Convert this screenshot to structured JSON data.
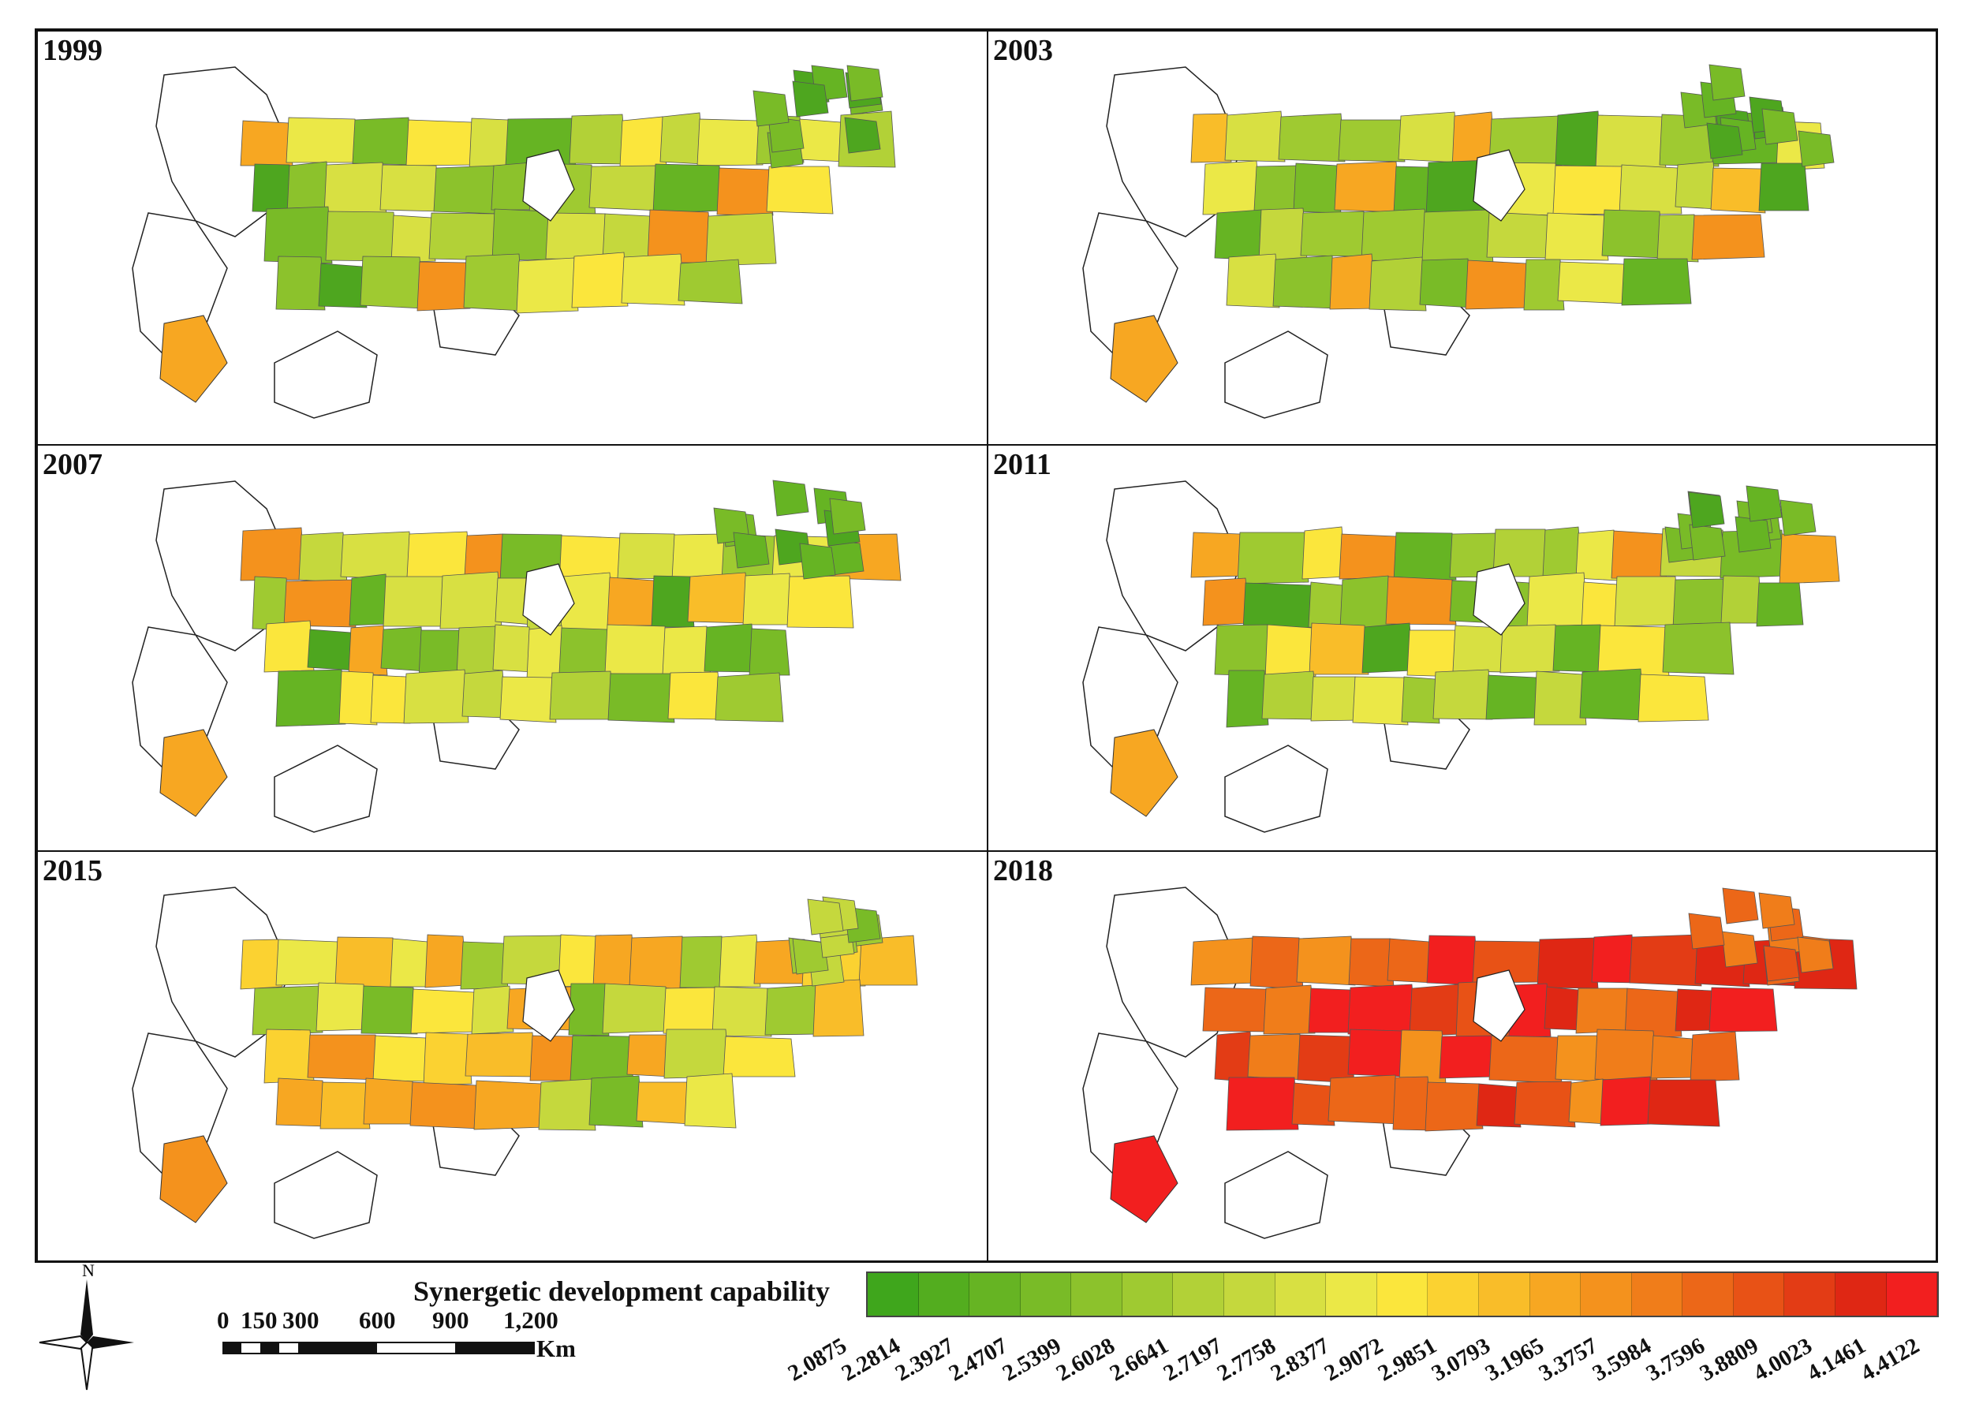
{
  "panels": [
    {
      "year": "1999",
      "theme": "mixed_green"
    },
    {
      "year": "2003",
      "theme": "mixed_green"
    },
    {
      "year": "2007",
      "theme": "mixed_green"
    },
    {
      "year": "2011",
      "theme": "mixed_green"
    },
    {
      "year": "2015",
      "theme": "yellow_orange"
    },
    {
      "year": "2018",
      "theme": "red"
    }
  ],
  "legend": {
    "title": "Synergetic development capability",
    "breaks": [
      "2.0875",
      "2.2814",
      "2.3927",
      "2.4707",
      "2.5399",
      "2.6028",
      "2.6641",
      "2.7197",
      "2.7758",
      "2.8377",
      "2.9072",
      "2.9851",
      "3.0793",
      "3.1965",
      "3.3757",
      "3.5984",
      "3.7596",
      "3.8809",
      "4.0023",
      "4.1461",
      "4.4122"
    ],
    "colors": [
      "#3fa61c",
      "#53ad1f",
      "#66b423",
      "#79bb27",
      "#8cc22c",
      "#9fca31",
      "#b2d137",
      "#c5d83d",
      "#d8e042",
      "#ebe847",
      "#fbe63c",
      "#fbd231",
      "#f9bd29",
      "#f7a722",
      "#f4921d",
      "#f07d1a",
      "#ec6718",
      "#e85216",
      "#e33c15",
      "#df2714",
      "#f21f1f"
    ]
  },
  "scale_bar": {
    "labels": [
      "0",
      "150",
      "300",
      "600",
      "900",
      "1,200"
    ],
    "unit": "Km"
  },
  "north_arrow": {
    "label": "N",
    "icon": "north-arrow-icon"
  }
}
